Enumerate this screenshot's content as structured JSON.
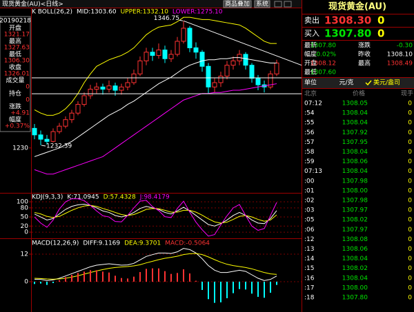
{
  "window": {
    "title": "现货黄金(AU)<日线>",
    "buttons": [
      "商品叠加",
      "系统"
    ]
  },
  "info_box": {
    "date": "20190218",
    "rows": [
      {
        "label": "开盘",
        "value": "1321.17"
      },
      {
        "label": "最高",
        "value": "1327.63"
      },
      {
        "label": "最低",
        "value": "1306.30"
      },
      {
        "label": "收盘",
        "value": "1326.01"
      },
      {
        "label": "成交量",
        "value": "0"
      },
      {
        "label": "持仓",
        "value": "0"
      },
      {
        "label": "涨跌",
        "value": "+4.91"
      },
      {
        "label": "幅度",
        "value": "+0.37%"
      }
    ]
  },
  "chart_data": [
    {
      "type": "candlestick",
      "title": "K  BOLL(26,2)",
      "ylim": [
        1190,
        1352
      ],
      "yticks": [
        1230
      ],
      "up_color": "#ff3232",
      "down_color": "#00ffff",
      "candles": [
        [
          1248,
          1252,
          1238,
          1242
        ],
        [
          1242,
          1246,
          1232.39,
          1238
        ],
        [
          1238,
          1242,
          1233,
          1236
        ],
        [
          1236,
          1248,
          1235,
          1245
        ],
        [
          1245,
          1253,
          1243,
          1250
        ],
        [
          1250,
          1259,
          1248,
          1256
        ],
        [
          1256,
          1265,
          1253,
          1262
        ],
        [
          1262,
          1273,
          1260,
          1270
        ],
        [
          1270,
          1281,
          1268,
          1278
        ],
        [
          1278,
          1288,
          1275,
          1284
        ],
        [
          1284,
          1290,
          1280,
          1286
        ],
        [
          1286,
          1289,
          1279,
          1284
        ],
        [
          1284,
          1292,
          1281,
          1287
        ],
        [
          1287,
          1290,
          1278,
          1283
        ],
        [
          1283,
          1289,
          1279,
          1286
        ],
        [
          1286,
          1294,
          1283,
          1290
        ],
        [
          1290,
          1302,
          1288,
          1298
        ],
        [
          1298,
          1314,
          1296,
          1310
        ],
        [
          1310,
          1322,
          1306,
          1318
        ],
        [
          1318,
          1322,
          1310,
          1315
        ],
        [
          1315,
          1326,
          1312,
          1320
        ],
        [
          1320,
          1324,
          1308,
          1312
        ],
        [
          1312,
          1320,
          1309,
          1316
        ],
        [
          1316,
          1332,
          1314,
          1328
        ],
        [
          1328,
          1346.75,
          1326,
          1340
        ],
        [
          1340,
          1342,
          1318,
          1322
        ],
        [
          1322,
          1327,
          1312,
          1318
        ],
        [
          1318,
          1320,
          1300,
          1305
        ],
        [
          1305,
          1308,
          1280,
          1286
        ],
        [
          1286,
          1294,
          1281,
          1290
        ],
        [
          1290,
          1300,
          1286,
          1296
        ],
        [
          1296,
          1310,
          1293,
          1306
        ],
        [
          1306,
          1314,
          1302,
          1310
        ],
        [
          1310,
          1320,
          1306,
          1316
        ],
        [
          1316,
          1318,
          1302,
          1306
        ],
        [
          1306,
          1308,
          1290,
          1294
        ],
        [
          1294,
          1297,
          1283,
          1288
        ],
        [
          1288,
          1292,
          1281,
          1286
        ],
        [
          1286,
          1301,
          1284,
          1298
        ],
        [
          1298,
          1311,
          1296,
          1308
        ]
      ],
      "series": [
        {
          "name": "MID:1303.60",
          "color": "#ffffff",
          "values": [
            1222,
            1224,
            1226,
            1228,
            1230,
            1233,
            1236,
            1240,
            1244,
            1248,
            1252,
            1256,
            1260,
            1263,
            1266,
            1270,
            1273,
            1277,
            1281,
            1285,
            1289,
            1292,
            1295,
            1299,
            1303,
            1306,
            1308,
            1310,
            1311,
            1311,
            1312,
            1312,
            1313,
            1313,
            1312,
            1311,
            1310,
            1309,
            1308,
            1308
          ]
        },
        {
          "name": "UPPER:1332.10",
          "color": "#ffff00",
          "values": [
            1265,
            1262,
            1260,
            1260,
            1262,
            1266,
            1272,
            1280,
            1290,
            1298,
            1305,
            1308,
            1311,
            1313,
            1315,
            1318,
            1322,
            1328,
            1334,
            1338,
            1341,
            1342,
            1343,
            1346,
            1350,
            1350,
            1349,
            1348,
            1348,
            1347,
            1346,
            1345,
            1344,
            1343,
            1340,
            1336,
            1332,
            1328,
            1326,
            1326
          ]
        },
        {
          "name": "LOWER:1275.10",
          "color": "#ff00ff",
          "values": [
            1210,
            1208,
            1206,
            1206,
            1208,
            1210,
            1212,
            1214,
            1216,
            1218,
            1220,
            1222,
            1226,
            1230,
            1234,
            1238,
            1242,
            1246,
            1250,
            1254,
            1258,
            1262,
            1266,
            1270,
            1274,
            1276,
            1278,
            1280,
            1280,
            1281,
            1281,
            1282,
            1283,
            1283,
            1284,
            1285,
            1286,
            1287,
            1288,
            1289
          ]
        }
      ],
      "annotations": [
        "1346.75",
        "1232.39"
      ],
      "hlines": [
        1294.4,
        1279.8
      ],
      "trendline": {
        "x": [
          24,
          43
        ],
        "y": [
          1346.75,
          1306
        ]
      }
    },
    {
      "type": "line",
      "title": "KDJ(9,3,3)",
      "ylim": [
        -18,
        125
      ],
      "yticks": [
        0,
        20,
        50,
        80,
        100
      ],
      "grid": true,
      "series": [
        {
          "name": "K:71.0945",
          "color": "#ffffff",
          "values": [
            60,
            50,
            40,
            45,
            60,
            75,
            85,
            90,
            92,
            88,
            80,
            70,
            65,
            55,
            50,
            55,
            65,
            78,
            85,
            80,
            75,
            65,
            60,
            70,
            82,
            70,
            55,
            40,
            25,
            20,
            28,
            40,
            55,
            65,
            55,
            40,
            30,
            28,
            45,
            71
          ]
        },
        {
          "name": "D:57.4328",
          "color": "#ffff00",
          "values": [
            65,
            60,
            52,
            48,
            52,
            62,
            72,
            80,
            86,
            88,
            85,
            78,
            72,
            65,
            58,
            55,
            58,
            66,
            75,
            78,
            77,
            72,
            66,
            66,
            72,
            72,
            66,
            56,
            44,
            34,
            30,
            33,
            42,
            52,
            55,
            50,
            42,
            36,
            40,
            57
          ]
        },
        {
          "name": "J:98.4179",
          "color": "#ff00ff",
          "values": [
            50,
            30,
            16,
            40,
            76,
            100,
            110,
            110,
            104,
            88,
            70,
            54,
            50,
            35,
            34,
            55,
            80,
            102,
            105,
            84,
            71,
            51,
            48,
            78,
            102,
            66,
            33,
            8,
            -13,
            -8,
            24,
            54,
            80,
            91,
            55,
            20,
            6,
            12,
            55,
            98
          ]
        }
      ]
    },
    {
      "type": "line",
      "title": "MACD(12,26,9)",
      "ylim": [
        -13.2,
        18.3
      ],
      "yticks": [
        0,
        12
      ],
      "grid": true,
      "series": [
        {
          "name": "DIFF:9.1169",
          "color": "#ffffff",
          "values": [
            1,
            1,
            0.5,
            0.8,
            1.5,
            2.5,
            3.5,
            4.5,
            5.5,
            6.5,
            7.2,
            7.5,
            7.8,
            7.5,
            7.2,
            7.3,
            8,
            9.5,
            11,
            11.8,
            12.5,
            12.5,
            12.3,
            13,
            14.5,
            14,
            12.5,
            10,
            7,
            5,
            4,
            4,
            4.5,
            5,
            4.5,
            3,
            1.5,
            0.5,
            1,
            2.5
          ]
        },
        {
          "name": "DEA:9.3701",
          "color": "#ffff00",
          "values": [
            1.5,
            1.4,
            1.2,
            1.1,
            1.2,
            1.5,
            2,
            2.6,
            3.3,
            4,
            4.7,
            5.3,
            5.8,
            6.2,
            6.4,
            6.6,
            6.9,
            7.4,
            8.2,
            8.9,
            9.6,
            10.2,
            10.6,
            11.1,
            11.8,
            12.2,
            12.3,
            11.8,
            10.8,
            9.6,
            8.5,
            7.6,
            7,
            6.6,
            6.2,
            5.6,
            4.8,
            4,
            3.4,
            3.2
          ]
        },
        {
          "name": "MACD:-0.5064",
          "style": "bar",
          "color": "#ff3232",
          "negative_color": "#00ffff",
          "values": [
            -1,
            -0.8,
            -1.4,
            -0.6,
            0.6,
            2,
            3,
            3.8,
            4.4,
            5,
            5,
            4.4,
            4,
            2.6,
            1.6,
            1.4,
            2.2,
            4.2,
            5.6,
            5.8,
            5.8,
            4.6,
            3.4,
            3.8,
            5.4,
            3.6,
            0.4,
            -3.6,
            -7.6,
            -9.2,
            -9,
            -7.2,
            -5,
            -3.2,
            -3.4,
            -5.2,
            -6.6,
            -7,
            -4.8,
            -1.4
          ]
        }
      ]
    }
  ],
  "quote": {
    "title": "现货黄金(AU)",
    "sell": {
      "label": "卖出",
      "price": "1308.30",
      "volume": "0",
      "color": "#ff3232"
    },
    "buy": {
      "label": "买入",
      "price": "1307.80",
      "volume": "0",
      "color": "#00e600"
    },
    "stats": [
      {
        "label": "最新",
        "value": "1307.80",
        "color": "#00e600"
      },
      {
        "label": "涨跌",
        "value": "-0.30",
        "color": "#00e600"
      },
      {
        "label": "幅度",
        "value": "-0.02%",
        "color": "#00e600"
      },
      {
        "label": "昨收",
        "value": "1308.10",
        "color": "#ffffff"
      },
      {
        "label": "开盘",
        "value": "1308.12",
        "color": "#ff3232"
      },
      {
        "label": "最高",
        "value": "1308.49",
        "color": "#ff3232"
      },
      {
        "label": "最低",
        "value": "1307.60",
        "color": "#00e600"
      }
    ],
    "unit": {
      "label": "单位",
      "options": [
        "元/克",
        "美元/盎司"
      ]
    },
    "columns": [
      "北京",
      "价格",
      "现手"
    ],
    "ticks": [
      [
        "07:12",
        "1308.05",
        "0"
      ],
      [
        ":54",
        "1308.04",
        "0"
      ],
      [
        ":55",
        "1308.04",
        "0"
      ],
      [
        ":56",
        "1307.92",
        "0"
      ],
      [
        ":57",
        "1307.95",
        "0"
      ],
      [
        ":58",
        "1308.04",
        "0"
      ],
      [
        ":59",
        "1308.06",
        "0"
      ],
      [
        "07:13",
        "1308.04",
        "0"
      ],
      [
        ":00",
        "1307.98",
        "0"
      ],
      [
        ":01",
        "1308.00",
        "0"
      ],
      [
        ":02",
        "1307.98",
        "0"
      ],
      [
        ":03",
        "1307.97",
        "0"
      ],
      [
        ":05",
        "1308.02",
        "0"
      ],
      [
        ":06",
        "1307.97",
        "0"
      ],
      [
        ":12",
        "1308.08",
        "0"
      ],
      [
        ":13",
        "1308.06",
        "0"
      ],
      [
        ":14",
        "1308.04",
        "0"
      ],
      [
        ":15",
        "1308.02",
        "0"
      ],
      [
        ":16",
        "1308.04",
        "0"
      ],
      [
        ":17",
        "1308.00",
        "0"
      ],
      [
        ":18",
        "1307.80",
        "0"
      ]
    ]
  }
}
